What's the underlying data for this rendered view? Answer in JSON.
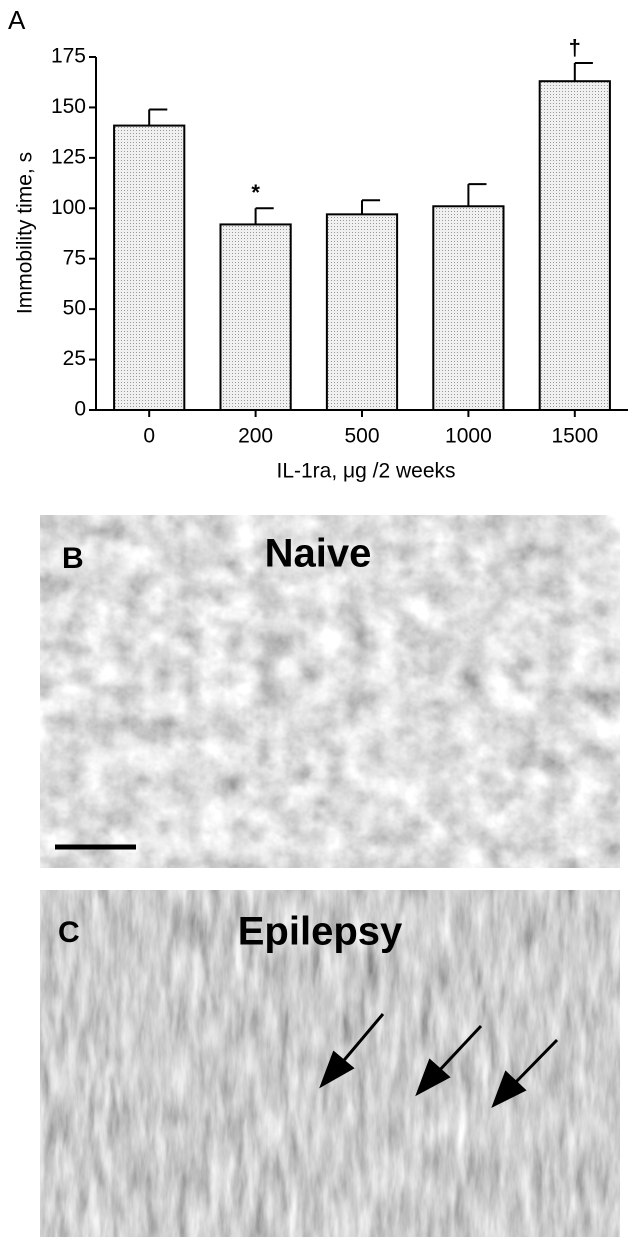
{
  "chart_data": {
    "type": "bar",
    "panel_label": "A",
    "y_label": "Immobility time, s",
    "x_label": "IL-1ra, μg /2 weeks",
    "categories": [
      "0",
      "200",
      "500",
      "1000",
      "1500"
    ],
    "values": [
      141,
      92,
      97,
      101,
      163
    ],
    "errors": [
      8,
      8,
      7,
      11,
      9
    ],
    "annotations": [
      {
        "category": "200",
        "text": "*"
      },
      {
        "category": "1500",
        "text": "†"
      }
    ],
    "ylim": [
      0,
      175
    ],
    "yticks": [
      0,
      25,
      50,
      75,
      100,
      125,
      150,
      175
    ],
    "color": "#e4e4e4",
    "grid": false
  },
  "panels": [
    {
      "label": "B",
      "title": "Naive"
    },
    {
      "label": "C",
      "title": "Epilepsy"
    }
  ]
}
